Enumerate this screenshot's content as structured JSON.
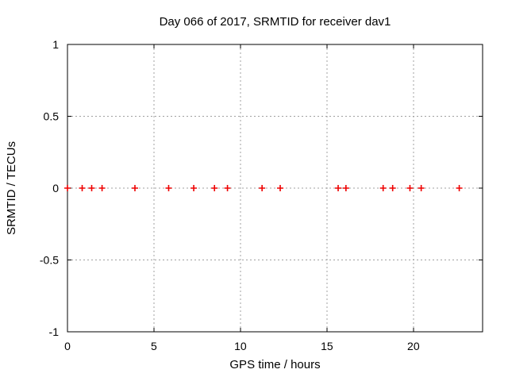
{
  "chart_data": {
    "type": "scatter",
    "title": "Day 066 of 2017, SRMTID for receiver dav1",
    "xlabel": "GPS time / hours",
    "ylabel": "SRMTID / TECUs",
    "xlim": [
      0,
      24
    ],
    "ylim": [
      -1,
      1
    ],
    "xticks": [
      0,
      5,
      10,
      15,
      20
    ],
    "yticks": [
      -1,
      -0.5,
      0,
      0.5,
      1
    ],
    "grid": "dotted",
    "legend_position": "none",
    "colors": {
      "marker": "#ee0000",
      "grid": "#a0a0a0",
      "border": "#000000",
      "text": "#000000",
      "background": "#ffffff"
    },
    "marker_shape": "plus",
    "series": [
      {
        "name": "SRMTID",
        "x": [
          0.0,
          0.85,
          1.4,
          2.0,
          3.9,
          5.85,
          7.3,
          8.5,
          9.25,
          11.25,
          12.3,
          15.65,
          16.1,
          18.25,
          18.8,
          19.8,
          20.45,
          22.65
        ],
        "y": [
          0,
          0,
          0,
          0,
          0,
          0,
          0,
          0,
          0,
          0,
          0,
          0,
          0,
          0,
          0,
          0,
          0,
          0
        ]
      }
    ]
  }
}
